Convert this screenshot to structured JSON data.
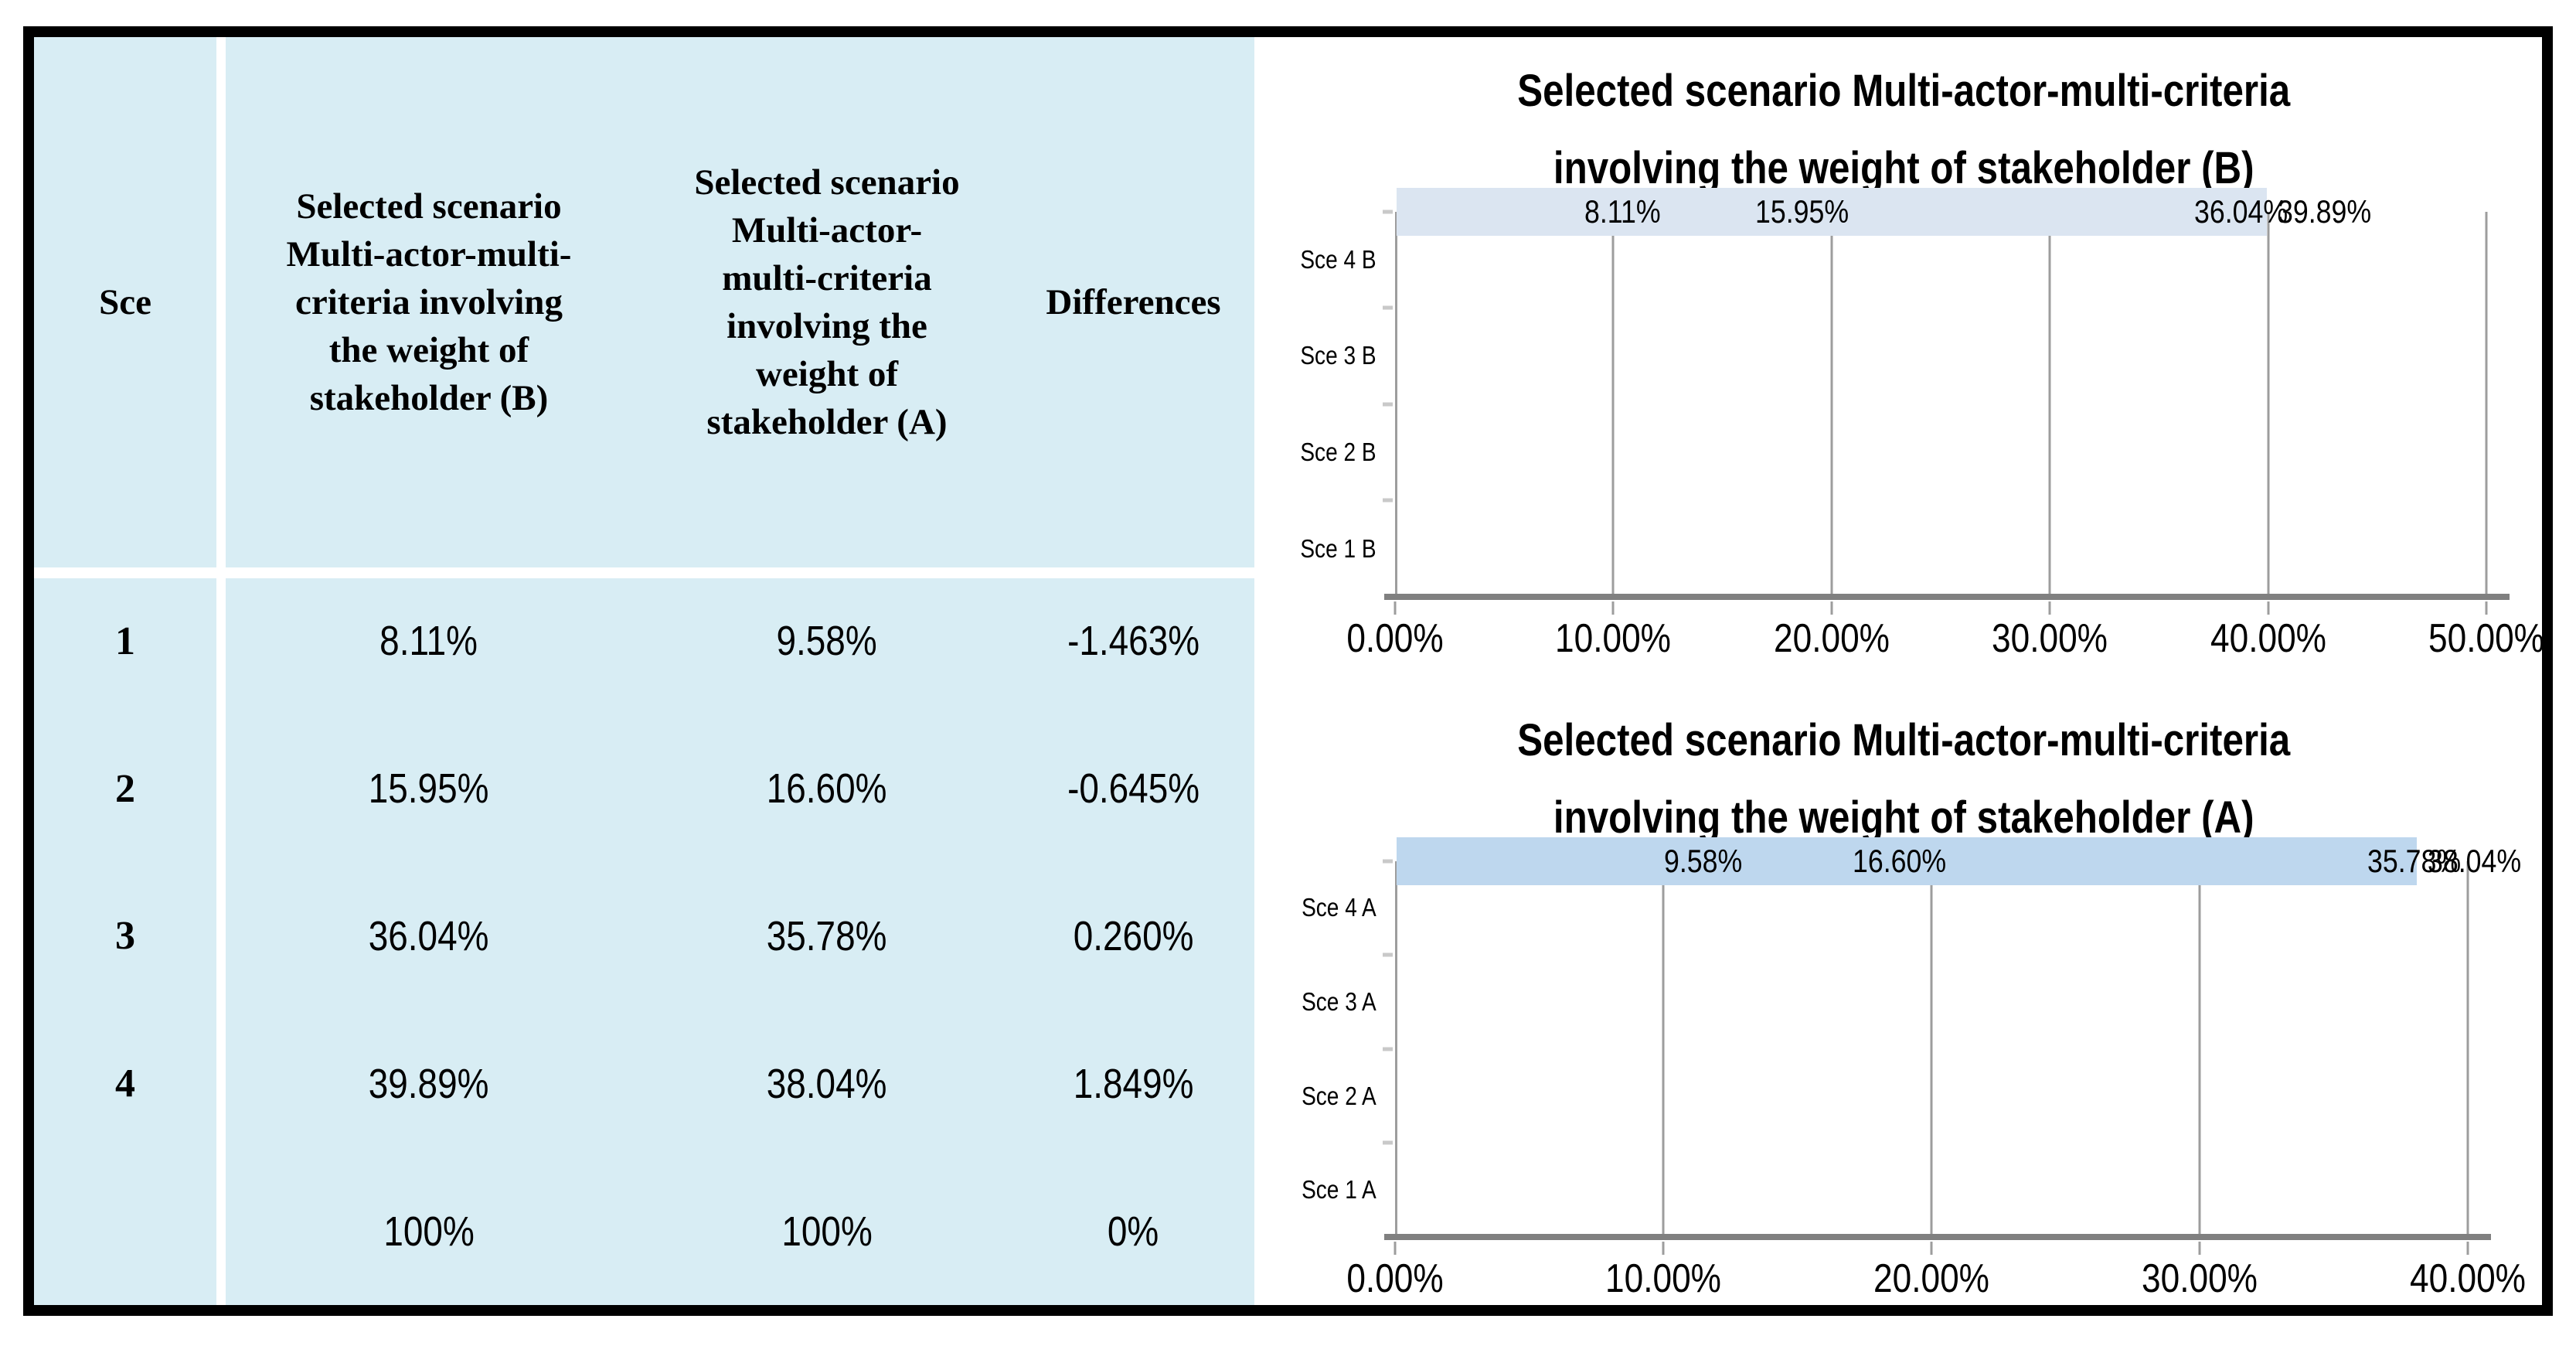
{
  "table": {
    "col_headers": {
      "sce": "Sce",
      "b": "Selected scenario\nMulti-actor-multi-\ncriteria involving\nthe weight of\nstakeholder (B)",
      "a": "Selected scenario\nMulti-actor-\nmulti-criteria\ninvolving the\nweight of\nstakeholder (A)",
      "diff": "Differences"
    },
    "rows": [
      {
        "sce": "1",
        "b": "8.11%",
        "a": "9.58%",
        "diff": "-1.463%"
      },
      {
        "sce": "2",
        "b": "15.95%",
        "a": "16.60%",
        "diff": "-0.645%"
      },
      {
        "sce": "3",
        "b": "36.04%",
        "a": "35.78%",
        "diff": "0.260%"
      },
      {
        "sce": "4",
        "b": "39.89%",
        "a": "38.04%",
        "diff": "1.849%"
      },
      {
        "sce": "",
        "b": "100%",
        "a": "100%",
        "diff": "0%"
      }
    ]
  },
  "chart_data": [
    {
      "type": "bar",
      "orientation": "horizontal",
      "title": "Selected scenario Multi-actor-multi-criteria\ninvolving the weight of stakeholder (B)",
      "categories": [
        "Sce 4 B",
        "Sce 3 B",
        "Sce 2 B",
        "Sce 1 B"
      ],
      "values": [
        39.89,
        36.04,
        15.95,
        8.11
      ],
      "labels": [
        "39.89%",
        "36.04%",
        "15.95%",
        "8.11%"
      ],
      "xlim": [
        0,
        50
      ],
      "x_ticks": [
        "0.00%",
        "10.00%",
        "20.00%",
        "30.00%",
        "40.00%",
        "50.00%"
      ],
      "bar_color": "#dbe5f1",
      "grid": true,
      "legend": false
    },
    {
      "type": "bar",
      "orientation": "horizontal",
      "title": "Selected scenario Multi-actor-multi-criteria\ninvolving the weight of stakeholder (A)",
      "categories": [
        "Sce 4 A",
        "Sce 3 A",
        "Sce 2 A",
        "Sce 1 A"
      ],
      "values": [
        38.04,
        35.78,
        16.6,
        9.58
      ],
      "labels": [
        "38.04%",
        "35.78%",
        "16.60%",
        "9.58%"
      ],
      "xlim": [
        0,
        40
      ],
      "x_ticks": [
        "0.00%",
        "10.00%",
        "20.00%",
        "30.00%",
        "40.00%"
      ],
      "bar_color": "#bed7ee",
      "grid": true,
      "legend": false
    }
  ],
  "colors": {
    "table_bg": "#d8edf4",
    "frame_border": "#000000",
    "bar_b": "#dbe5f1",
    "bar_a": "#bed7ee",
    "gridline": "#9d9d9d",
    "axis_line": "#808080",
    "cat_tick": "#c9c9c9"
  }
}
